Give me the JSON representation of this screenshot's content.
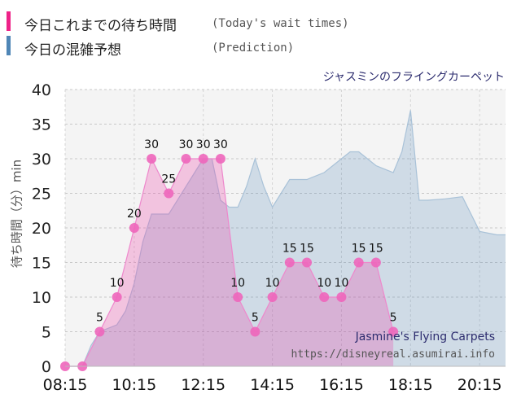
{
  "legend": [
    {
      "label": "今日これまでの待ち時間",
      "label_en": "(Today's wait times)",
      "color": "#ee2288"
    },
    {
      "label": "今日の混雑予想",
      "label_en": "(Prediction)",
      "color": "#4f86b6"
    }
  ],
  "watermark": {
    "name": "Jasmine's Flying Carpets",
    "url": "https://disneyreal.asumirai.info"
  },
  "chart_data": {
    "type": "area",
    "title": "ジャスミンのフライングカーペット",
    "ylabel": "待ち時間（分）min",
    "xlabel": "",
    "ylim": [
      0,
      40
    ],
    "yticks": [
      0,
      5,
      10,
      15,
      20,
      25,
      30,
      35,
      40
    ],
    "xlim": [
      "08:15",
      "21:00"
    ],
    "xticks": [
      "08:15",
      "10:15",
      "12:15",
      "14:15",
      "16:15",
      "18:15",
      "20:15"
    ],
    "grid": true,
    "series": [
      {
        "name": "今日これまでの待ち時間",
        "style": "area-with-markers",
        "color": "#ee77c4",
        "data_labels": true,
        "x": [
          "08:15",
          "08:45",
          "09:15",
          "09:45",
          "10:15",
          "10:45",
          "11:15",
          "11:45",
          "12:15",
          "12:45",
          "13:15",
          "13:45",
          "14:15",
          "14:45",
          "15:15",
          "15:45",
          "16:15",
          "16:45",
          "17:15",
          "17:45"
        ],
        "y": [
          0,
          0,
          5,
          10,
          20,
          30,
          25,
          30,
          30,
          30,
          10,
          5,
          10,
          15,
          15,
          10,
          10,
          15,
          15,
          5
        ]
      },
      {
        "name": "今日の混雑予想",
        "style": "area",
        "color": "#4f86b6",
        "x": [
          "08:15",
          "08:45",
          "09:00",
          "09:15",
          "09:45",
          "10:00",
          "10:15",
          "10:30",
          "10:45",
          "11:15",
          "11:45",
          "12:15",
          "12:30",
          "12:45",
          "13:00",
          "13:15",
          "13:30",
          "13:45",
          "14:00",
          "14:15",
          "14:30",
          "14:45",
          "15:15",
          "15:45",
          "16:15",
          "16:30",
          "16:45",
          "17:15",
          "17:30",
          "17:45",
          "18:00",
          "18:15",
          "18:30",
          "18:45",
          "19:15",
          "19:45",
          "20:15",
          "20:45",
          "21:00"
        ],
        "y": [
          0,
          0,
          3,
          5,
          6,
          8,
          12,
          18,
          22,
          22,
          26,
          30,
          30,
          24,
          23,
          23,
          26,
          30,
          26,
          23,
          25,
          27,
          27,
          28,
          30,
          31,
          31,
          29,
          28.5,
          28,
          31,
          37,
          24,
          24,
          24.2,
          24.5,
          19.5,
          19,
          19
        ]
      }
    ]
  }
}
